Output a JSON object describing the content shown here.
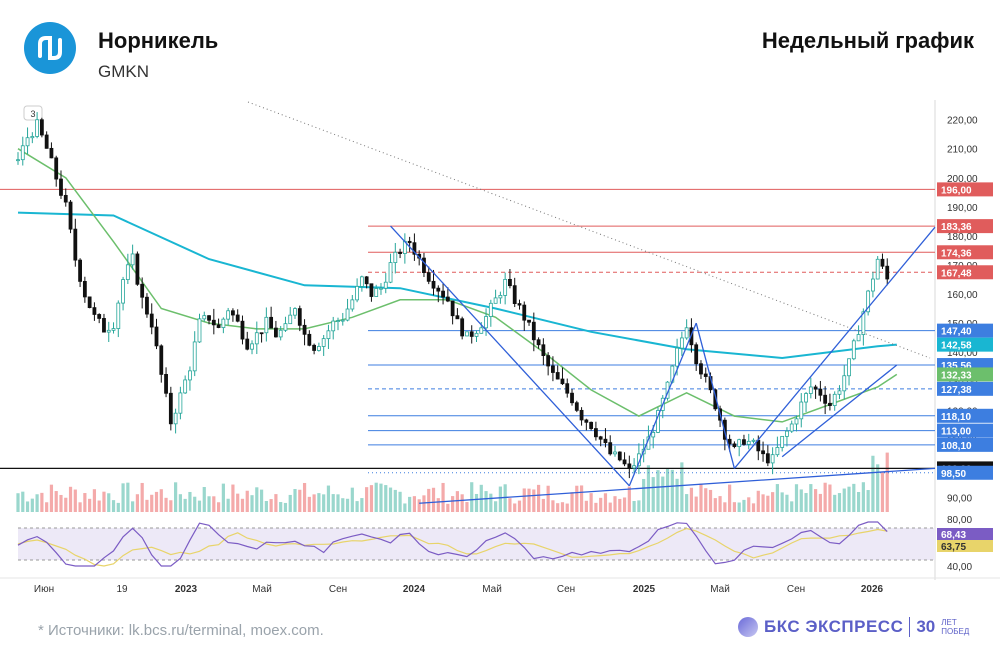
{
  "header": {
    "company": "Норникель",
    "ticker": "GMKN",
    "chart_kind": "Недельный график"
  },
  "footer": {
    "sources": "*  Источники: lk.bcs.ru/terminal, moex.com.",
    "brand": "БКС ЭКСПРЕСС",
    "brand_30": "30",
    "brand_sub1": "ЛЕТ",
    "brand_sub2": "ПОБЕД"
  },
  "colors": {
    "up": "#26a69a",
    "down": "#111111",
    "ma_fast": "#6cbf6c",
    "ma_slow": "#19b6d2",
    "trend": "#2f5fd8",
    "resistance": "#e05c5c",
    "support": "#3d7ee0",
    "rsi": "#7b5cc4",
    "rsi_ma": "#e8d46a",
    "logo": "#1a95d8"
  },
  "chart_data": {
    "type": "candlestick",
    "timeframe": "weekly",
    "y_axis_ticks": [
      "220,00",
      "210,00",
      "200,00",
      "190,00",
      "180,00",
      "170,00",
      "160,00",
      "150,00",
      "140,00",
      "130,00",
      "120,00",
      "110,00",
      "100,00",
      "90,00"
    ],
    "ylim": [
      85,
      224
    ],
    "x_axis_labels": [
      "Июн",
      "19",
      "2023",
      "Май",
      "Сен",
      "2024",
      "Май",
      "Сен",
      "2025",
      "Май",
      "Сен",
      "2026"
    ],
    "price_levels": [
      {
        "value": 196.0,
        "label": "196,00",
        "color": "#e05c5c",
        "style": "solid"
      },
      {
        "value": 183.36,
        "label": "183,36",
        "color": "#e05c5c",
        "style": "solid"
      },
      {
        "value": 174.36,
        "label": "174,36",
        "color": "#e05c5c",
        "style": "solid"
      },
      {
        "value": 167.48,
        "label": "167,48",
        "color": "#e05c5c",
        "style": "dashed"
      },
      {
        "value": 147.4,
        "label": "147,40",
        "color": "#3d7ee0",
        "style": "solid"
      },
      {
        "value": 142.58,
        "label": "142,58",
        "color": "#19b6d2",
        "style": "ma"
      },
      {
        "value": 135.56,
        "label": "135,56",
        "color": "#3d7ee0",
        "style": "solid"
      },
      {
        "value": 132.33,
        "label": "132,33",
        "color": "#6cbf6c",
        "style": "ma"
      },
      {
        "value": 127.38,
        "label": "127,38",
        "color": "#3d7ee0",
        "style": "dashed"
      },
      {
        "value": 118.1,
        "label": "118,10",
        "color": "#3d7ee0",
        "style": "solid"
      },
      {
        "value": 113.0,
        "label": "113,00",
        "color": "#3d7ee0",
        "style": "solid"
      },
      {
        "value": 108.1,
        "label": "108,10",
        "color": "#3d7ee0",
        "style": "solid"
      },
      {
        "value": 100.0,
        "label": "100,00",
        "color": "#111111",
        "style": "solid"
      },
      {
        "value": 98.5,
        "label": "98,50",
        "color": "#3d7ee0",
        "style": "dotted"
      }
    ],
    "close_path": [
      [
        0,
        206
      ],
      [
        2,
        214
      ],
      [
        4,
        218
      ],
      [
        6,
        210
      ],
      [
        8,
        200
      ],
      [
        10,
        190
      ],
      [
        12,
        172
      ],
      [
        14,
        160
      ],
      [
        16,
        152
      ],
      [
        18,
        148
      ],
      [
        20,
        150
      ],
      [
        22,
        165
      ],
      [
        24,
        172
      ],
      [
        26,
        158
      ],
      [
        28,
        150
      ],
      [
        30,
        132
      ],
      [
        32,
        116
      ],
      [
        34,
        125
      ],
      [
        36,
        135
      ],
      [
        38,
        150
      ],
      [
        40,
        152
      ],
      [
        42,
        148
      ],
      [
        44,
        155
      ],
      [
        46,
        150
      ],
      [
        48,
        143
      ],
      [
        50,
        146
      ],
      [
        52,
        150
      ],
      [
        54,
        146
      ],
      [
        56,
        148
      ],
      [
        58,
        156
      ],
      [
        60,
        146
      ],
      [
        62,
        142
      ],
      [
        64,
        145
      ],
      [
        66,
        150
      ],
      [
        68,
        152
      ],
      [
        70,
        158
      ],
      [
        72,
        165
      ],
      [
        74,
        160
      ],
      [
        76,
        162
      ],
      [
        78,
        170
      ],
      [
        80,
        175
      ],
      [
        82,
        178
      ],
      [
        84,
        172
      ],
      [
        86,
        166
      ],
      [
        88,
        162
      ],
      [
        90,
        158
      ],
      [
        92,
        150
      ],
      [
        94,
        145
      ],
      [
        96,
        148
      ],
      [
        98,
        152
      ],
      [
        100,
        158
      ],
      [
        102,
        164
      ],
      [
        104,
        158
      ],
      [
        106,
        152
      ],
      [
        108,
        145
      ],
      [
        110,
        138
      ],
      [
        112,
        132
      ],
      [
        114,
        128
      ],
      [
        116,
        124
      ],
      [
        118,
        118
      ],
      [
        120,
        115
      ],
      [
        122,
        110
      ],
      [
        124,
        105
      ],
      [
        126,
        103
      ],
      [
        128,
        99
      ],
      [
        130,
        104
      ],
      [
        132,
        110
      ],
      [
        134,
        118
      ],
      [
        136,
        128
      ],
      [
        138,
        140
      ],
      [
        140,
        150
      ],
      [
        142,
        138
      ],
      [
        144,
        130
      ],
      [
        146,
        122
      ],
      [
        148,
        112
      ],
      [
        150,
        106
      ],
      [
        152,
        110
      ],
      [
        154,
        108
      ],
      [
        156,
        104
      ],
      [
        158,
        103
      ],
      [
        160,
        110
      ],
      [
        162,
        115
      ],
      [
        164,
        122
      ],
      [
        166,
        128
      ],
      [
        168,
        126
      ],
      [
        170,
        122
      ],
      [
        172,
        128
      ],
      [
        174,
        136
      ],
      [
        176,
        148
      ],
      [
        178,
        160
      ],
      [
        180,
        172
      ],
      [
        182,
        165
      ]
    ],
    "trend_lines": [
      {
        "name": "",
        "points": [
          [
            78,
            183.36
          ],
          [
            128,
            94
          ]
        ]
      },
      {
        "name": "",
        "points": [
          [
            128,
            94
          ],
          [
            142,
            150
          ]
        ]
      },
      {
        "name": "",
        "points": [
          [
            142,
            150
          ],
          [
            150,
            100
          ]
        ]
      },
      {
        "name": "",
        "points": [
          [
            150,
            100
          ],
          [
            192,
            183
          ]
        ]
      },
      {
        "name": "",
        "points": [
          [
            160,
            104
          ],
          [
            184,
            135.56
          ]
        ]
      },
      {
        "name": "",
        "points": [
          [
            84,
            88
          ],
          [
            192,
            100
          ]
        ]
      }
    ],
    "moving_averages": [
      {
        "name": "",
        "color": "#19b6d2",
        "values": [
          [
            0,
            188
          ],
          [
            20,
            187
          ],
          [
            40,
            172
          ],
          [
            60,
            163
          ],
          [
            80,
            162
          ],
          [
            100,
            155
          ],
          [
            120,
            147
          ],
          [
            140,
            141
          ],
          [
            160,
            138
          ],
          [
            180,
            142
          ],
          [
            184,
            142.58
          ]
        ]
      },
      {
        "name": "",
        "color": "#6cbf6c",
        "values": [
          [
            0,
            210
          ],
          [
            10,
            200
          ],
          [
            20,
            178
          ],
          [
            30,
            155
          ],
          [
            40,
            150
          ],
          [
            50,
            148
          ],
          [
            60,
            148
          ],
          [
            70,
            152
          ],
          [
            80,
            158
          ],
          [
            90,
            158
          ],
          [
            100,
            152
          ],
          [
            110,
            140
          ],
          [
            120,
            127
          ],
          [
            130,
            118
          ],
          [
            140,
            126
          ],
          [
            150,
            118
          ],
          [
            160,
            116
          ],
          [
            170,
            122
          ],
          [
            180,
            128
          ],
          [
            184,
            132.33
          ]
        ]
      }
    ],
    "volume_note": "",
    "rsi": {
      "ticks": [
        "80,00",
        "40,00"
      ],
      "levels": [
        {
          "label": "68,43",
          "color": "#7b5cc4"
        },
        {
          "label": "63,75",
          "color": "#e8d46a"
        }
      ]
    },
    "toolbar_badge": "3"
  }
}
